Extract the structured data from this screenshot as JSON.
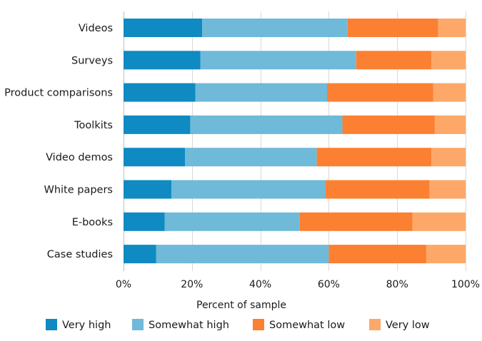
{
  "chart_data": {
    "type": "bar",
    "orientation": "horizontal",
    "stacked": true,
    "categories": [
      "Videos",
      "Surveys",
      "Product comparisons",
      "Toolkits",
      "Video demos",
      "White papers",
      "E-books",
      "Case studies"
    ],
    "series": [
      {
        "name": "Very high",
        "color": "#0f8ac2",
        "values": [
          23,
          22.5,
          21,
          19.5,
          18,
          14,
          12,
          9.5
        ]
      },
      {
        "name": "Somewhat high",
        "color": "#6fb9d9",
        "values": [
          42.5,
          45.5,
          38.5,
          44.5,
          38.5,
          45,
          39.5,
          50.5
        ]
      },
      {
        "name": "Somewhat low",
        "color": "#fc8032",
        "values": [
          26.5,
          22,
          31,
          27,
          33.5,
          30.5,
          33,
          28.5
        ]
      },
      {
        "name": "Very low",
        "color": "#fda868",
        "values": [
          8,
          10,
          9.5,
          9,
          10,
          10.5,
          15.5,
          11.5
        ]
      }
    ],
    "xlim": [
      0,
      100
    ],
    "xticks": [
      0,
      20,
      40,
      60,
      80,
      100
    ],
    "xtick_labels": [
      "0%",
      "20%",
      "40%",
      "60%",
      "80%",
      "100%"
    ],
    "xlabel": "Percent of sample",
    "ylabel": "",
    "title": "",
    "grid": true,
    "legend_position": "bottom"
  }
}
